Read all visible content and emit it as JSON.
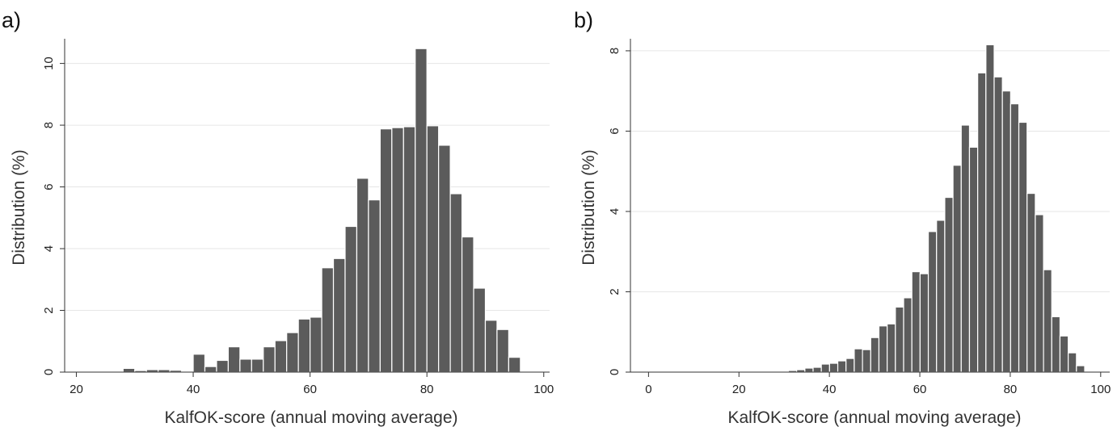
{
  "chart_data": [
    {
      "type": "bar",
      "panel_label": "a)",
      "xlabel": "KalfOK-score (annual moving average)",
      "ylabel": "Distribution (%)",
      "xlim": [
        18,
        101
      ],
      "ylim": [
        0,
        10.8
      ],
      "xticks": [
        20,
        40,
        60,
        80,
        100
      ],
      "yticks": [
        0,
        2,
        4,
        6,
        8,
        10
      ],
      "grid": true,
      "bin_width": 2,
      "x": [
        29,
        31,
        33,
        35,
        37,
        39,
        41,
        43,
        45,
        47,
        49,
        51,
        53,
        55,
        57,
        59,
        61,
        63,
        65,
        67,
        69,
        71,
        73,
        75,
        77,
        79,
        81,
        83,
        85,
        87,
        89,
        91,
        93,
        95,
        97
      ],
      "values": [
        0.12,
        0.05,
        0.08,
        0.08,
        0.06,
        0.0,
        0.58,
        0.18,
        0.38,
        0.82,
        0.42,
        0.42,
        0.82,
        1.02,
        1.28,
        1.72,
        1.78,
        3.38,
        3.68,
        4.72,
        6.28,
        5.58,
        7.88,
        7.92,
        7.95,
        10.48,
        7.98,
        7.35,
        5.78,
        4.38,
        2.72,
        1.68,
        1.38,
        0.48,
        0.0
      ]
    },
    {
      "type": "bar",
      "panel_label": "b)",
      "xlabel": "KalfOK-score (annual moving average)",
      "ylabel": "Distribution (%)",
      "xlim": [
        -4,
        102
      ],
      "ylim": [
        0,
        8.3
      ],
      "xticks": [
        0,
        20,
        40,
        60,
        80,
        100
      ],
      "yticks": [
        0,
        2,
        4,
        6,
        8
      ],
      "grid": true,
      "bin_width": 1.82,
      "x": [
        0.91,
        2.73,
        4.55,
        6.37,
        8.19,
        10.01,
        11.83,
        13.65,
        15.47,
        17.29,
        19.11,
        20.93,
        22.75,
        24.57,
        26.39,
        28.21,
        30.03,
        31.85,
        33.67,
        35.49,
        37.31,
        39.13,
        40.95,
        42.77,
        44.59,
        46.41,
        48.23,
        50.05,
        51.87,
        53.69,
        55.51,
        57.33,
        59.15,
        60.97,
        62.79,
        64.61,
        66.43,
        68.25,
        70.07,
        71.89,
        73.71,
        75.53,
        77.35,
        79.17,
        80.99,
        82.81,
        84.63,
        86.45,
        88.27,
        90.09,
        91.91,
        93.73,
        95.55,
        97.37,
        99.19
      ],
      "values": [
        0.02,
        0.02,
        0.0,
        0.02,
        0.0,
        0.02,
        0.02,
        0.02,
        0.02,
        0.0,
        0.02,
        0.02,
        0.0,
        0.02,
        0.02,
        0.02,
        0.02,
        0.04,
        0.06,
        0.1,
        0.12,
        0.2,
        0.22,
        0.28,
        0.34,
        0.58,
        0.56,
        0.86,
        1.15,
        1.2,
        1.62,
        1.85,
        2.5,
        2.45,
        3.5,
        3.78,
        4.35,
        5.15,
        6.15,
        5.6,
        7.45,
        8.15,
        7.35,
        7.0,
        6.68,
        6.22,
        4.45,
        3.92,
        2.55,
        1.38,
        0.9,
        0.48,
        0.16,
        0.0,
        0.0
      ]
    }
  ]
}
